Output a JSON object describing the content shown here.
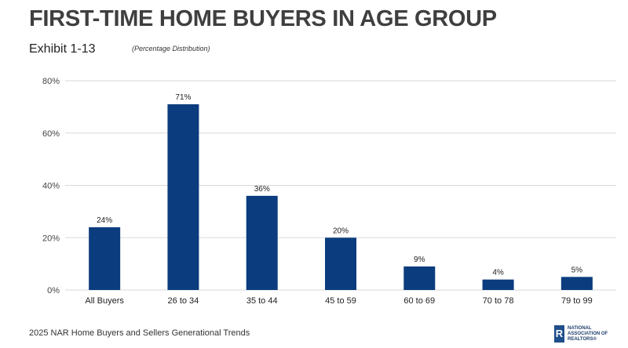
{
  "title": "FIRST-TIME HOME BUYERS IN AGE GROUP",
  "exhibit": "Exhibit 1-13",
  "note": "(Percentage Distribution)",
  "footer": "2025 NAR Home Buyers and Sellers Generational Trends",
  "logo": {
    "mark": "R",
    "line1": "NATIONAL",
    "line2": "ASSOCIATION OF",
    "line3": "REALTORS®"
  },
  "chart_data": {
    "type": "bar",
    "categories": [
      "All Buyers",
      "26 to 34",
      "35 to 44",
      "45 to 59",
      "60 to 69",
      "70 to 78",
      "79 to 99"
    ],
    "values": [
      24,
      71,
      36,
      20,
      9,
      4,
      5
    ],
    "data_labels": [
      "24%",
      "71%",
      "36%",
      "20%",
      "9%",
      "4%",
      "5%"
    ],
    "yticks": [
      0,
      20,
      40,
      60,
      80
    ],
    "ytick_labels": [
      "0%",
      "20%",
      "40%",
      "60%",
      "80%"
    ],
    "ylim": [
      0,
      80
    ],
    "grid": true,
    "bar_color": "#0b3d7e",
    "grid_color": "#d9d9d9"
  }
}
